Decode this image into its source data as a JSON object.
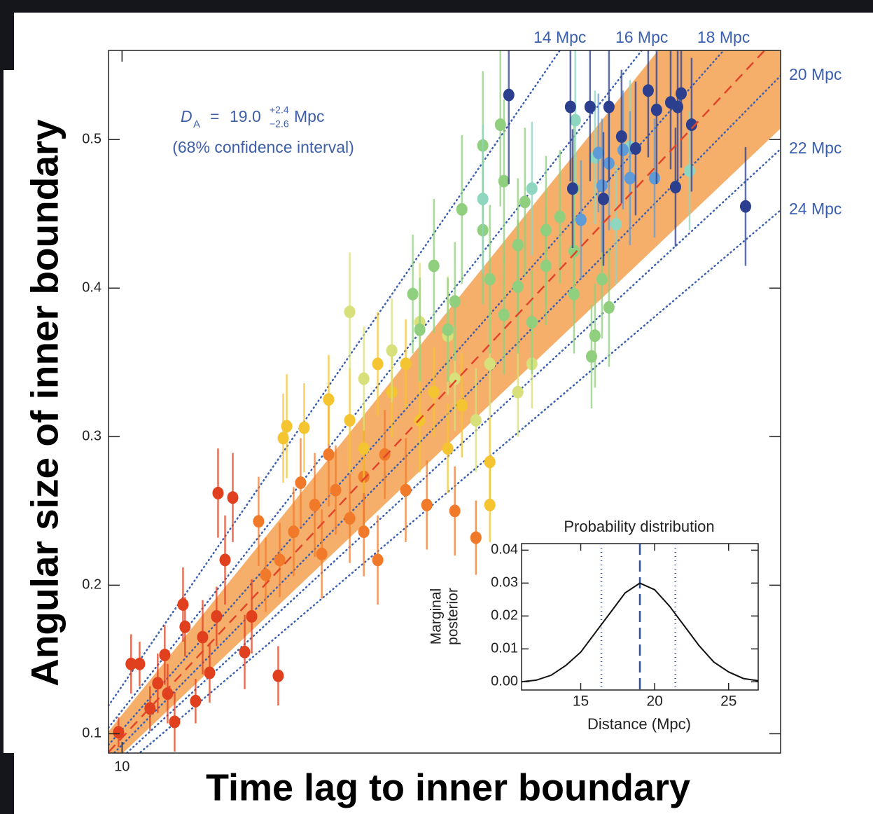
{
  "chart_data": [
    {
      "type": "scatter",
      "xlabel": "Time lag to inner boundary",
      "ylabel": "Angular size of inner boundary",
      "xlim": [
        9,
        58.7
      ],
      "ylim": [
        0.087,
        0.56
      ],
      "xticks": [
        10
      ],
      "yticks": [
        0.1,
        0.2,
        0.3,
        0.4,
        0.5
      ],
      "estimate": {
        "symbol": "D",
        "subscript": "A",
        "equals": "=",
        "center": {
          "value": 19,
          "label": "19.0"
        },
        "plus": {
          "value": 2.4,
          "label": "+2.4"
        },
        "minus": {
          "value": 2.6,
          "label": "−2.6"
        },
        "unit": "Mpc",
        "note": "(68% confidence interval)"
      },
      "band_color": "#f5a65b",
      "center_line_color": "#e0452b",
      "distance_line_color": "#3a5fb0",
      "distance_lines": [
        {
          "value": 14,
          "label": "14 Mpc"
        },
        {
          "value": 16,
          "label": "16 Mpc"
        },
        {
          "value": 18,
          "label": "18 Mpc"
        },
        {
          "value": 20,
          "label": "20 Mpc"
        },
        {
          "value": 22,
          "label": "22 Mpc"
        },
        {
          "value": 24,
          "label": "24 Mpc"
        }
      ],
      "series": [
        {
          "color": "#e0401e",
          "x": [
            10.67,
            11.3,
            13.16,
            14.51,
            17.1,
            18.19,
            17.62,
            14.66,
            16.48,
            19.07,
            21.55,
            15.44,
            13.37,
            12.07,
            13.89,
            9.74,
            19.59,
            16.99,
            12.64,
            15.96
          ],
          "values": [
            0.147,
            0.147,
            0.153,
            0.187,
            0.262,
            0.259,
            0.217,
            0.172,
            0.141,
            0.155,
            0.139,
            0.122,
            0.127,
            0.117,
            0.108,
            0.101,
            0.179,
            0.179,
            0.134,
            0.165
          ],
          "err": [
            0.02,
            0.015,
            0.02,
            0.025,
            0.03,
            0.03,
            0.03,
            0.02,
            0.02,
            0.025,
            0.02,
            0.015,
            0.02,
            0.015,
            0.02,
            0.01,
            0.025,
            0.02,
            0.02,
            0.025
          ]
        },
        {
          "color": "#f07a2a",
          "x": [
            20.1,
            22.69,
            24.25,
            25.8,
            21.66,
            27.88,
            29.43,
            24.77,
            30.98,
            32.54,
            27.88,
            23.21,
            20.62,
            26.84,
            28.91,
            34.61,
            36.17,
            25.28
          ],
          "values": [
            0.243,
            0.236,
            0.254,
            0.264,
            0.217,
            0.273,
            0.288,
            0.221,
            0.264,
            0.254,
            0.236,
            0.269,
            0.207,
            0.245,
            0.217,
            0.25,
            0.232,
            0.288
          ],
          "err": [
            0.03,
            0.03,
            0.035,
            0.03,
            0.025,
            0.035,
            0.03,
            0.03,
            0.035,
            0.03,
            0.03,
            0.03,
            0.025,
            0.03,
            0.03,
            0.03,
            0.025,
            0.035
          ]
        },
        {
          "color": "#f5c431",
          "x": [
            21.92,
            22.18,
            23.47,
            26.84,
            29.95,
            32.02,
            34.09,
            37.2,
            37.2,
            28.91,
            33.06,
            25.28,
            35.13,
            30.98,
            27.88
          ],
          "values": [
            0.299,
            0.307,
            0.306,
            0.311,
            0.33,
            0.311,
            0.292,
            0.283,
            0.254,
            0.349,
            0.33,
            0.325,
            0.321,
            0.349,
            0.292
          ],
          "err": [
            0.03,
            0.035,
            0.03,
            0.035,
            0.03,
            0.035,
            0.03,
            0.03,
            0.025,
            0.035,
            0.03,
            0.03,
            0.035,
            0.03,
            0.03
          ]
        },
        {
          "color": "#d7e07a",
          "x": [
            26.84,
            29.95,
            34.09,
            37.2,
            39.27,
            32.02,
            36.17,
            40.31,
            27.88,
            34.61
          ],
          "values": [
            0.384,
            0.358,
            0.368,
            0.349,
            0.33,
            0.377,
            0.311,
            0.349,
            0.339,
            0.339
          ],
          "err": [
            0.04,
            0.035,
            0.04,
            0.035,
            0.03,
            0.04,
            0.035,
            0.03,
            0.035,
            0.035
          ]
        },
        {
          "color": "#8fcf7e",
          "x": [
            31.5,
            33.06,
            34.61,
            37.2,
            39.27,
            41.35,
            43.42,
            40.31,
            36.68,
            35.13,
            38.24,
            39.79,
            42.38,
            44.97,
            46.01,
            32.02,
            34.09,
            36.68,
            37.98,
            43.42,
            41.35,
            38.24,
            39.27,
            43.42,
            45.49,
            44.72
          ],
          "values": [
            0.396,
            0.415,
            0.391,
            0.406,
            0.429,
            0.415,
            0.396,
            0.377,
            0.439,
            0.453,
            0.472,
            0.458,
            0.448,
            0.368,
            0.387,
            0.372,
            0.372,
            0.496,
            0.51,
            0.467,
            0.439,
            0.382,
            0.401,
            0.425,
            0.406,
            0.354
          ],
          "err": [
            0.04,
            0.045,
            0.04,
            0.05,
            0.045,
            0.04,
            0.04,
            0.035,
            0.05,
            0.05,
            0.055,
            0.05,
            0.045,
            0.035,
            0.04,
            0.035,
            0.035,
            0.05,
            0.055,
            0.045,
            0.05,
            0.04,
            0.045,
            0.04,
            0.04,
            0.035
          ]
        },
        {
          "color": "#8fd6c0",
          "x": [
            43.52,
            44.97,
            46.53,
            47.56,
            51.97,
            40.31,
            36.68
          ],
          "values": [
            0.513,
            0.488,
            0.443,
            0.495,
            0.479,
            0.467,
            0.46
          ],
          "err": [
            0.05,
            0.045,
            0.04,
            0.045,
            0.04,
            0.045,
            0.05
          ]
        },
        {
          "color": "#5f9bd6",
          "x": [
            45.23,
            46.01,
            47.56,
            49.38,
            43.94,
            45.49,
            47.05
          ],
          "values": [
            0.491,
            0.484,
            0.474,
            0.474,
            0.446,
            0.469,
            0.493
          ],
          "err": [
            0.04,
            0.045,
            0.045,
            0.04,
            0.04,
            0.045,
            0.04
          ]
        },
        {
          "color": "#2c3f8f",
          "x": [
            38.6,
            43.16,
            44.61,
            46.01,
            48.91,
            49.53,
            50.57,
            51.09,
            51.35,
            52.12,
            46.94,
            47.98,
            50.93,
            56.11,
            45.6,
            43.32
          ],
          "values": [
            0.53,
            0.522,
            0.522,
            0.522,
            0.533,
            0.52,
            0.525,
            0.522,
            0.531,
            0.51,
            0.502,
            0.494,
            0.468,
            0.455,
            0.46,
            0.467
          ],
          "err": [
            0.06,
            0.05,
            0.05,
            0.05,
            0.045,
            0.05,
            0.045,
            0.05,
            0.05,
            0.045,
            0.045,
            0.045,
            0.04,
            0.04,
            0.045,
            0.04
          ]
        }
      ]
    },
    {
      "type": "line",
      "title": "Probability distribution",
      "xlabel": "Distance (Mpc)",
      "ylabel": [
        "Marginal",
        "posterior"
      ],
      "xlim": [
        11,
        27
      ],
      "ylim": [
        -0.0025,
        0.042
      ],
      "xticks": [
        15,
        20,
        25
      ],
      "yticks": [
        {
          "value": 0,
          "label": "0.00"
        },
        {
          "value": 0.01,
          "label": "0.01"
        },
        {
          "value": 0.02,
          "label": "0.02"
        },
        {
          "value": 0.03,
          "label": "0.03"
        },
        {
          "value": 0.04,
          "label": "0.04"
        }
      ],
      "color": "#111111",
      "marker_color": "#2f4fa0",
      "x": [
        11,
        12,
        13,
        14,
        15,
        16,
        17,
        18,
        19,
        20,
        21,
        22,
        23,
        24,
        25,
        26,
        27
      ],
      "values": [
        0.0,
        0.0005,
        0.002,
        0.005,
        0.009,
        0.015,
        0.021,
        0.027,
        0.03,
        0.028,
        0.023,
        0.017,
        0.011,
        0.006,
        0.003,
        0.001,
        0.0003
      ]
    }
  ]
}
